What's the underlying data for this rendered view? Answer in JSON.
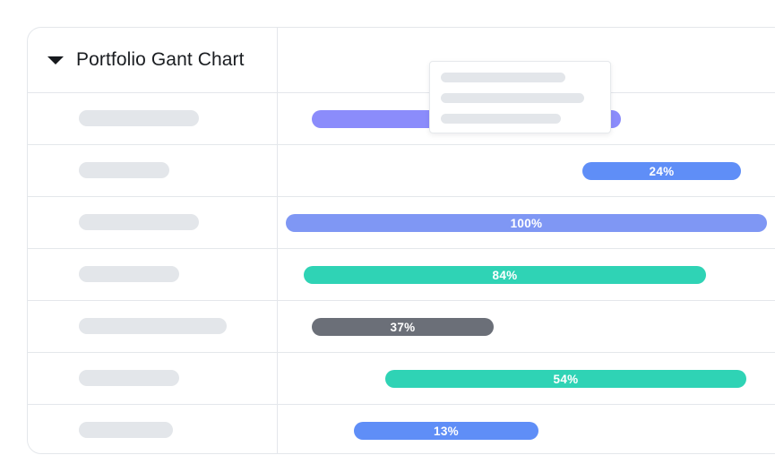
{
  "header": {
    "title": "Portfolio Gant Chart",
    "caret_icon": "caret-down-icon"
  },
  "colors": {
    "purple": "#8b8cfb",
    "blue": "#5f8ef7",
    "periwinkle": "#7f97f4",
    "teal": "#2fd3b5",
    "gray": "#6b6f78",
    "placeholder": "#e3e6ea",
    "border": "#e4e7eb"
  },
  "rows": [
    {
      "label": "",
      "progress": "",
      "progress_value": null,
      "color": "#8b8cfb"
    },
    {
      "label": "",
      "progress": "24%",
      "progress_value": 24,
      "color": "#5f8ef7"
    },
    {
      "label": "",
      "progress": "100%",
      "progress_value": 100,
      "color": "#7f97f4"
    },
    {
      "label": "",
      "progress": "84%",
      "progress_value": 84,
      "color": "#2fd3b5"
    },
    {
      "label": "",
      "progress": "37%",
      "progress_value": 37,
      "color": "#6b6f78"
    },
    {
      "label": "",
      "progress": "54%",
      "progress_value": 54,
      "color": "#2fd3b5"
    },
    {
      "label": "",
      "progress": "13%",
      "progress_value": 13,
      "color": "#5f8ef7"
    }
  ]
}
